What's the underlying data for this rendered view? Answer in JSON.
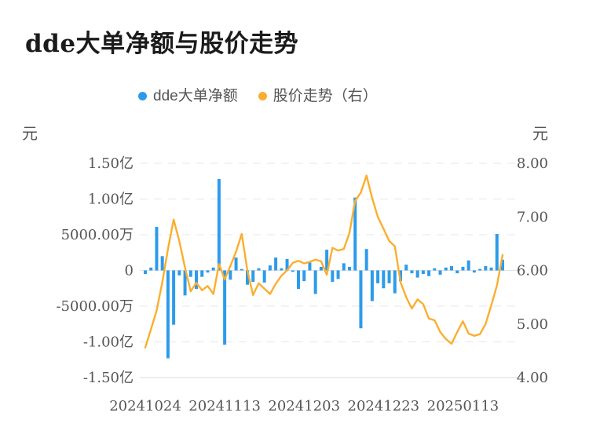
{
  "chart_data": {
    "type": "combo",
    "title": "dde大单净额与股价走势",
    "legend_position": "top",
    "grid": {
      "horizontal": true,
      "style": "dashed"
    },
    "n_points": 64,
    "x_tick_labels": [
      "20241024",
      "20241113",
      "20241203",
      "20241223",
      "20250113"
    ],
    "x_tick_indices": [
      0,
      14,
      28,
      42,
      56
    ],
    "left_axis": {
      "unit": "元",
      "tick_labels": [
        "1.50亿",
        "1.00亿",
        "5000.00万",
        "0",
        "-5000.00万",
        "-1.00亿",
        "-1.50亿"
      ],
      "ylim_yi": [
        -1.5,
        1.5
      ]
    },
    "right_axis": {
      "unit": "元",
      "tick_labels": [
        "8.00",
        "7.00",
        "6.00",
        "5.00",
        "4.00"
      ],
      "ylim": [
        4,
        8
      ]
    },
    "series": [
      {
        "name": "dde大单净额",
        "type": "bar",
        "yaxis": "left",
        "unit": "亿元",
        "color": "#2d9beb",
        "values": [
          -0.05,
          0.04,
          0.61,
          0.2,
          -1.23,
          -0.76,
          -0.07,
          -0.35,
          -0.09,
          -0.26,
          -0.09,
          -0.03,
          0.04,
          1.28,
          -1.04,
          -0.13,
          0.18,
          0.02,
          -0.2,
          -0.16,
          0.03,
          -0.17,
          0.07,
          0.18,
          0.03,
          0.16,
          -0.02,
          -0.26,
          -0.15,
          0.11,
          -0.33,
          0.05,
          0.29,
          -0.16,
          -0.12,
          0.1,
          0.05,
          1.02,
          -0.81,
          0.3,
          -0.43,
          -0.18,
          -0.25,
          -0.18,
          -0.32,
          -0.15,
          0.08,
          -0.04,
          -0.1,
          -0.05,
          -0.08,
          0.03,
          -0.06,
          0.04,
          0.06,
          -0.04,
          0.05,
          0.14,
          -0.03,
          0.02,
          0.06,
          0.04,
          0.51,
          0.15
        ]
      },
      {
        "name": "股价走势（右）",
        "type": "line",
        "yaxis": "right",
        "unit": "元",
        "color": "#fbae2e",
        "values": [
          4.56,
          4.9,
          5.25,
          5.78,
          6.4,
          6.95,
          6.55,
          6.05,
          5.61,
          5.77,
          5.63,
          5.71,
          5.56,
          6.12,
          5.83,
          6.08,
          6.35,
          6.68,
          6.0,
          5.54,
          5.76,
          5.66,
          5.56,
          5.75,
          5.9,
          6.0,
          6.14,
          6.18,
          6.13,
          6.16,
          6.2,
          6.17,
          5.92,
          6.42,
          6.37,
          6.4,
          6.7,
          7.3,
          7.45,
          7.77,
          7.35,
          7.0,
          6.78,
          6.55,
          6.45,
          5.78,
          5.5,
          5.29,
          5.46,
          5.37,
          5.1,
          5.07,
          4.85,
          4.72,
          4.63,
          4.85,
          5.05,
          4.82,
          4.78,
          4.81,
          5.0,
          5.35,
          5.72,
          6.29
        ]
      }
    ]
  }
}
